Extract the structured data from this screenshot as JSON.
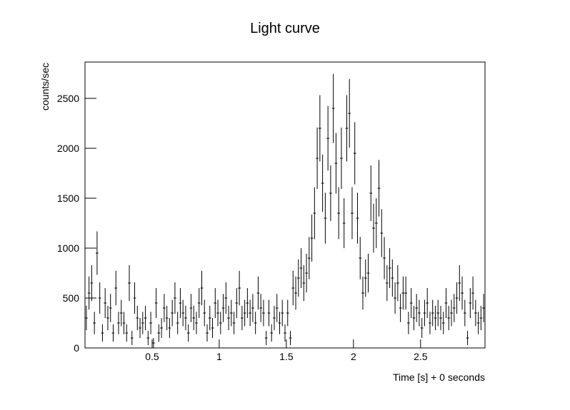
{
  "chart_data": {
    "type": "histogram",
    "title": "Light curve",
    "x_label": "Time [s] + 0 seconds",
    "y_label": "counts/sec",
    "bins": [
      0,
      0.02,
      0.04,
      0.06,
      0.08,
      0.1,
      0.12,
      0.14,
      0.16,
      0.18,
      0.2,
      0.22,
      0.24,
      0.26,
      0.28,
      0.3,
      0.32,
      0.34,
      0.36,
      0.38,
      0.4,
      0.42,
      0.44,
      0.46,
      0.48,
      0.5,
      0.52,
      0.54,
      0.56,
      0.58,
      0.6,
      0.62,
      0.64,
      0.66,
      0.68,
      0.7,
      0.72,
      0.74,
      0.76,
      0.78,
      0.8,
      0.82,
      0.84,
      0.86,
      0.88,
      0.9,
      0.92,
      0.94,
      0.96,
      0.98,
      1,
      1.02,
      1.04,
      1.06,
      1.08,
      1.1,
      1.12,
      1.14,
      1.16,
      1.18,
      1.2,
      1.22,
      1.24,
      1.26,
      1.28,
      1.3,
      1.32,
      1.34,
      1.36,
      1.38,
      1.4,
      1.42,
      1.44,
      1.46,
      1.48,
      1.5,
      1.52,
      1.54,
      1.56,
      1.58,
      1.6,
      1.62,
      1.64,
      1.66,
      1.68,
      1.7,
      1.72,
      1.74,
      1.76,
      1.78,
      1.8,
      1.82,
      1.84,
      1.86,
      1.88,
      1.9,
      1.92,
      1.94,
      1.96,
      1.98,
      2,
      2.02,
      2.04,
      2.06,
      2.08,
      2.1,
      2.12,
      2.14,
      2.16,
      2.18,
      2.2,
      2.22,
      2.24,
      2.26,
      2.28,
      2.3,
      2.32,
      2.34,
      2.36,
      2.38,
      2.4,
      2.42,
      2.44,
      2.46,
      2.48,
      2.5,
      2.52,
      2.54,
      2.56,
      2.58,
      2.6,
      2.62,
      2.64,
      2.66,
      2.68,
      2.7,
      2.72,
      2.74,
      2.76,
      2.78,
      2.8,
      2.82,
      2.84,
      2.86,
      2.88,
      2.9,
      2.92,
      2.94,
      2.96,
      2.98
    ],
    "values": [
      300,
      550,
      650,
      250,
      950,
      500,
      150,
      450,
      300,
      400,
      150,
      600,
      250,
      350,
      250,
      150,
      650,
      100,
      500,
      300,
      200,
      250,
      300,
      100,
      250,
      50,
      450,
      150,
      200,
      400,
      300,
      200,
      350,
      500,
      250,
      450,
      350,
      300,
      150,
      400,
      300,
      250,
      450,
      600,
      350,
      150,
      300,
      200,
      450,
      350,
      250,
      400,
      500,
      300,
      350,
      250,
      450,
      600,
      300,
      350,
      450,
      350,
      400,
      250,
      550,
      400,
      350,
      100,
      350,
      150,
      300,
      400,
      250,
      350,
      150,
      350,
      100,
      600,
      550,
      700,
      800,
      650,
      750,
      900,
      1100,
      1350,
      1900,
      2200,
      1650,
      1300,
      2100,
      1550,
      2400,
      1850,
      1350,
      1900,
      1250,
      2200,
      2350,
      1350,
      1950,
      1300,
      900,
      550,
      700,
      750,
      1550,
      1200,
      1250,
      1600,
      1150,
      900,
      650,
      800,
      700,
      500,
      650,
      400,
      550,
      550,
      250,
      450,
      300,
      400,
      350,
      200,
      350,
      450,
      250,
      350,
      300,
      350,
      300,
      250,
      450,
      300,
      350,
      400,
      500,
      650,
      550,
      350,
      100,
      450,
      550,
      350,
      250,
      300,
      400
    ],
    "errors": [
      122,
      166,
      180,
      112,
      218,
      158,
      87,
      150,
      122,
      141,
      87,
      173,
      112,
      132,
      112,
      87,
      180,
      71,
      158,
      122,
      100,
      112,
      122,
      71,
      112,
      50,
      150,
      87,
      100,
      141,
      122,
      100,
      132,
      158,
      112,
      150,
      132,
      122,
      87,
      141,
      122,
      112,
      150,
      173,
      132,
      87,
      122,
      100,
      150,
      132,
      112,
      141,
      158,
      122,
      132,
      112,
      150,
      173,
      122,
      132,
      150,
      132,
      141,
      112,
      166,
      141,
      132,
      71,
      132,
      87,
      122,
      141,
      112,
      132,
      87,
      132,
      71,
      173,
      166,
      187,
      200,
      180,
      194,
      212,
      235,
      260,
      308,
      332,
      287,
      255,
      324,
      278,
      346,
      304,
      260,
      308,
      250,
      332,
      343,
      260,
      312,
      255,
      212,
      166,
      187,
      194,
      278,
      245,
      250,
      283,
      240,
      212,
      180,
      200,
      187,
      158,
      180,
      141,
      166,
      166,
      112,
      150,
      122,
      141,
      132,
      100,
      132,
      150,
      112,
      132,
      122,
      132,
      122,
      112,
      150,
      122,
      132,
      141,
      158,
      180,
      166,
      132,
      71,
      150,
      166,
      132,
      112,
      122,
      141
    ],
    "color": "#000000",
    "xlim": [
      0,
      2.98
    ],
    "ylim": [
      0,
      2864
    ],
    "xticks": [
      0.5,
      1,
      1.5,
      2,
      2.5
    ],
    "yticks": [
      0,
      500,
      1000,
      1500,
      2000,
      2500
    ]
  }
}
